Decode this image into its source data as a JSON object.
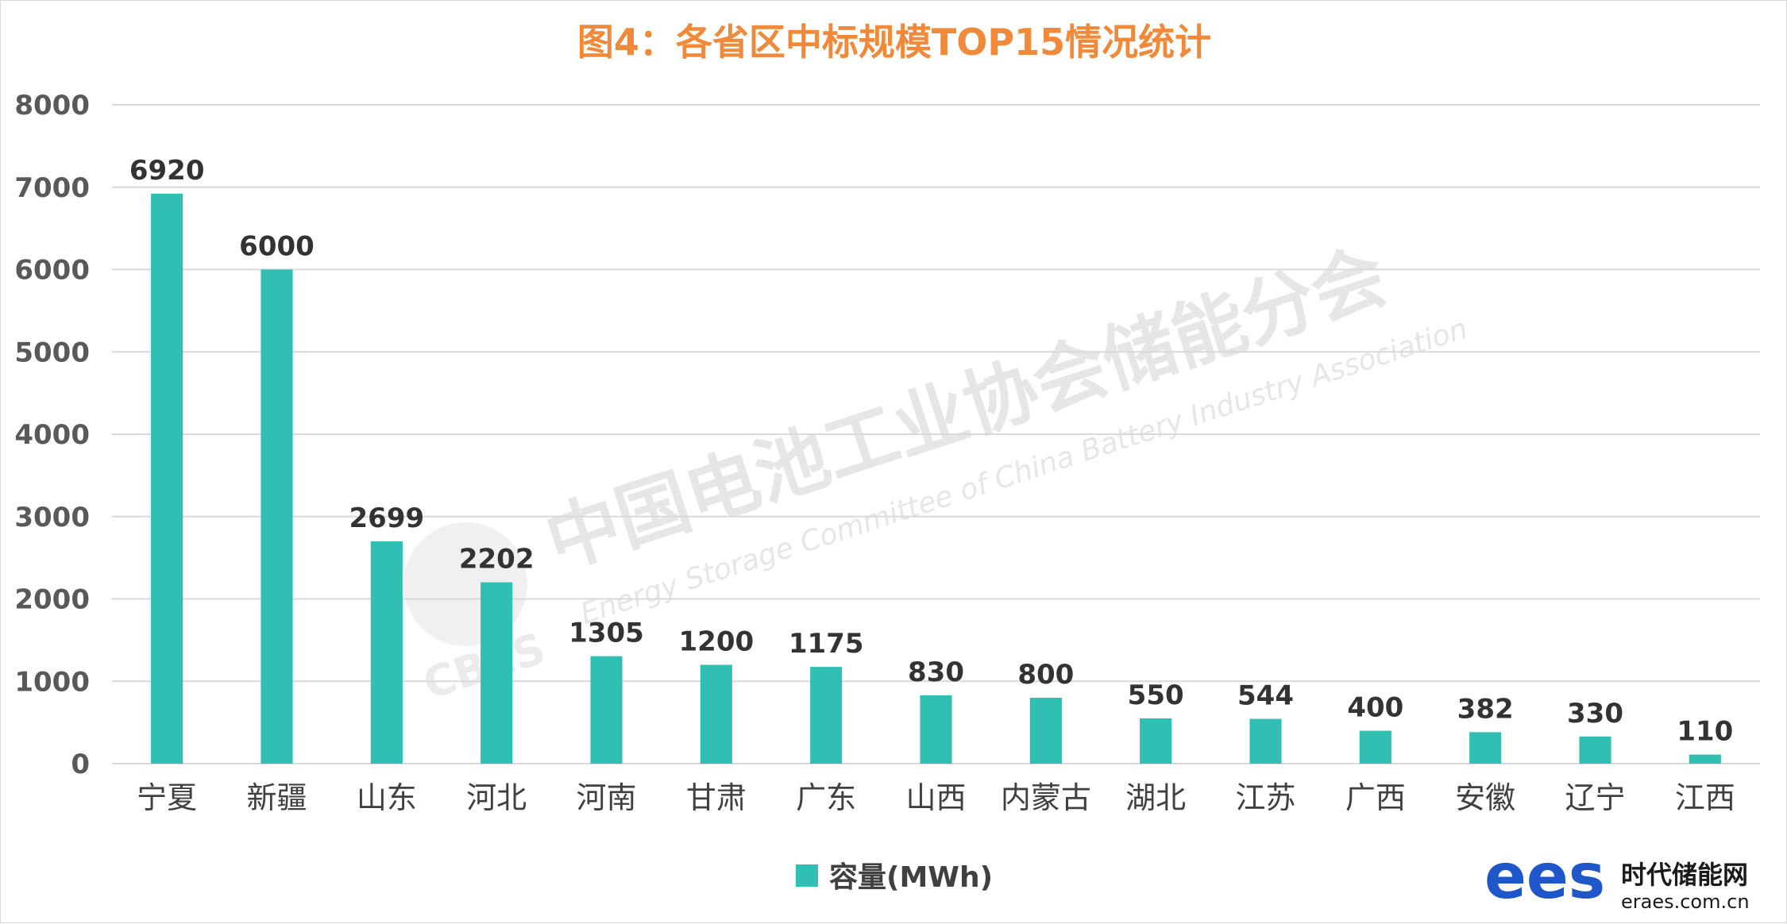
{
  "chart_data": {
    "type": "bar",
    "title": "图4：各省区中标规模TOP15情况统计",
    "categories": [
      "宁夏",
      "新疆",
      "山东",
      "河北",
      "河南",
      "甘肃",
      "广东",
      "山西",
      "内蒙古",
      "湖北",
      "江苏",
      "广西",
      "安徽",
      "辽宁",
      "江西"
    ],
    "series": [
      {
        "name": "容量(MWh)",
        "values": [
          6920,
          6000,
          2699,
          2202,
          1305,
          1200,
          1175,
          830,
          800,
          550,
          544,
          400,
          382,
          330,
          110
        ]
      }
    ],
    "ylim": [
      0,
      8000
    ],
    "yticks": [
      "0",
      "1000",
      "2000",
      "3000",
      "4000",
      "5000",
      "6000",
      "7000",
      "8000"
    ],
    "grid": true,
    "legend_position": "bottom",
    "colors": {
      "bar": "#30bfb2",
      "title": "#f08a3a",
      "grid": "#d9d9d9"
    }
  },
  "watermark": {
    "org_cn": "中国电池工业协会储能分会",
    "org_en": "Energy Storage Committee of China Battery Industry Association",
    "logo_text": "CBES"
  },
  "branding": {
    "logo_text": "ees",
    "name": "时代储能网",
    "url": "eraes.com.cn"
  }
}
